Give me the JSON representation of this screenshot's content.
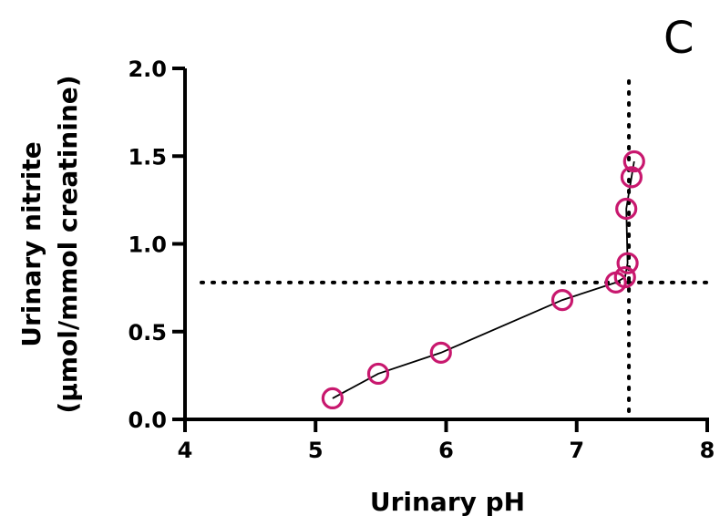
{
  "panel_label": "C",
  "chart_data": {
    "type": "scatter",
    "xlabel": "Urinary pH",
    "ylabel_line1": "Urinary nitrite",
    "ylabel_line2": "(µmol/mmol creatinine)",
    "xlim": [
      4,
      8
    ],
    "ylim": [
      0,
      2
    ],
    "x_ticks": [
      {
        "value": 4,
        "label": "4"
      },
      {
        "value": 5,
        "label": "5"
      },
      {
        "value": 6,
        "label": "6"
      },
      {
        "value": 7,
        "label": "7"
      },
      {
        "value": 8,
        "label": "8"
      }
    ],
    "y_ticks": [
      {
        "value": 0,
        "label": "0.0"
      },
      {
        "value": 0.5,
        "label": "0.5"
      },
      {
        "value": 1.0,
        "label": "1.0"
      },
      {
        "value": 1.5,
        "label": "1.5"
      },
      {
        "value": 2.0,
        "label": "2.0"
      }
    ],
    "grid": false,
    "marker_color": "#c8186e",
    "points": [
      {
        "x": 5.13,
        "y": 0.12
      },
      {
        "x": 5.48,
        "y": 0.26
      },
      {
        "x": 5.96,
        "y": 0.38
      },
      {
        "x": 6.89,
        "y": 0.68
      },
      {
        "x": 7.3,
        "y": 0.78
      },
      {
        "x": 7.37,
        "y": 0.81
      },
      {
        "x": 7.39,
        "y": 0.89
      },
      {
        "x": 7.38,
        "y": 1.2
      },
      {
        "x": 7.42,
        "y": 1.38
      },
      {
        "x": 7.44,
        "y": 1.47
      }
    ],
    "fit_curve": [
      {
        "x": 5.13,
        "y": 0.12
      },
      {
        "x": 5.48,
        "y": 0.26
      },
      {
        "x": 5.96,
        "y": 0.38
      },
      {
        "x": 6.89,
        "y": 0.68
      },
      {
        "x": 7.3,
        "y": 0.78
      },
      {
        "x": 7.37,
        "y": 0.81
      },
      {
        "x": 7.39,
        "y": 0.89
      },
      {
        "x": 7.38,
        "y": 1.2
      },
      {
        "x": 7.42,
        "y": 1.38
      },
      {
        "x": 7.44,
        "y": 1.47
      }
    ],
    "reference_lines": {
      "vertical_x": 7.4,
      "horizontal_y": 0.78
    }
  }
}
